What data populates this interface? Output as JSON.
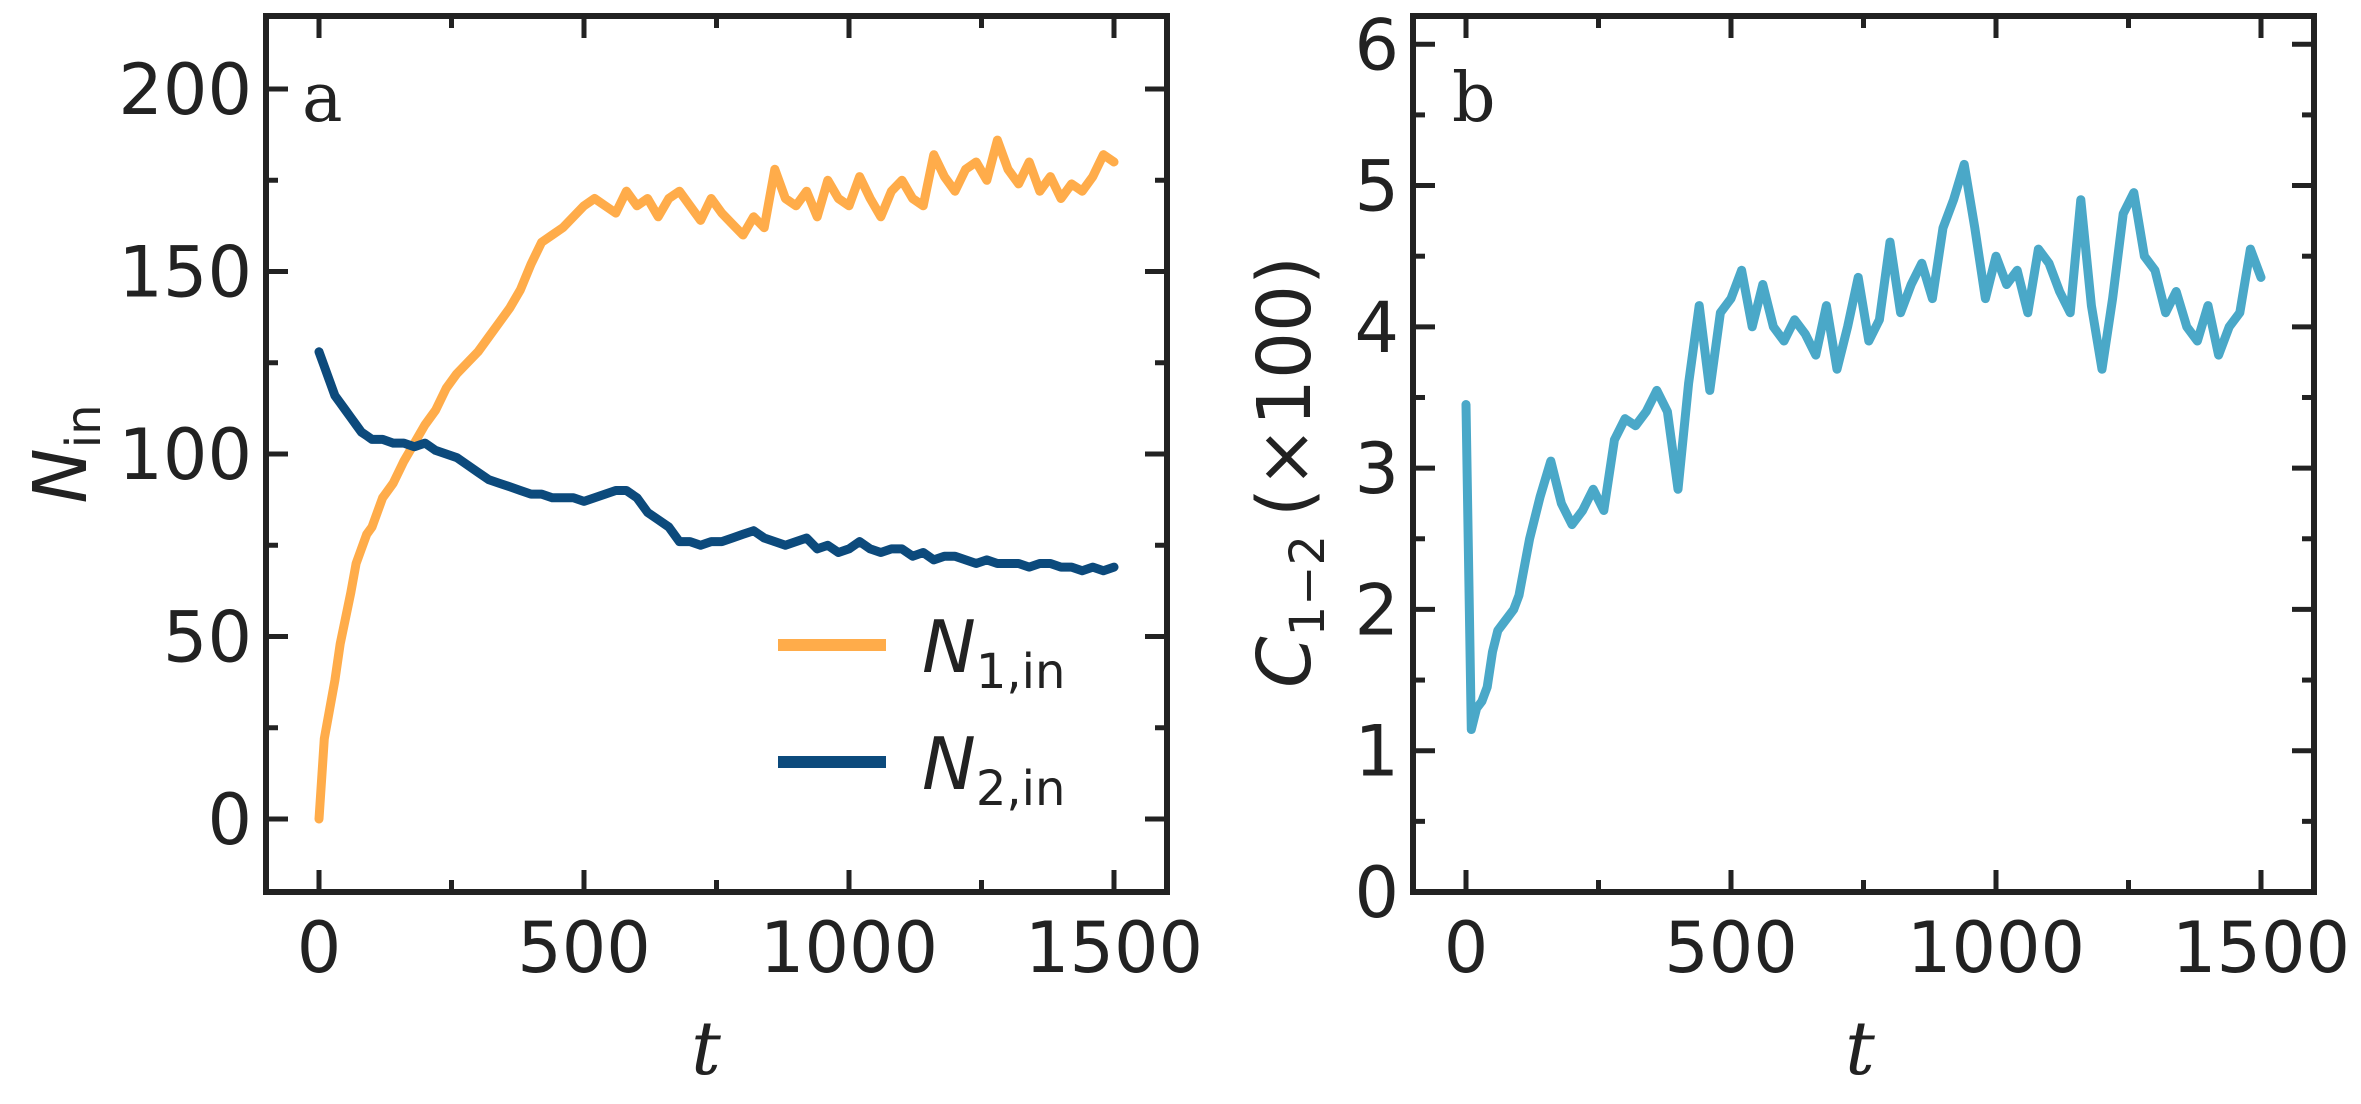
{
  "chart_data": [
    {
      "type": "line",
      "panel_label": "a",
      "xlabel": "t",
      "ylabel": "N",
      "ylabel_sub": "in",
      "xlim": [
        -100,
        1600
      ],
      "ylim": [
        -20,
        220
      ],
      "x_ticks": [
        0,
        500,
        1000,
        1500
      ],
      "y_ticks": [
        0,
        50,
        100,
        150,
        200
      ],
      "legend_position": "lower-right",
      "series": [
        {
          "name": "N",
          "name_sub": "1,in",
          "color": "#FFAC4A",
          "x": [
            0,
            10,
            20,
            30,
            40,
            50,
            60,
            70,
            80,
            90,
            100,
            120,
            140,
            160,
            180,
            200,
            220,
            240,
            260,
            280,
            300,
            320,
            340,
            360,
            380,
            400,
            420,
            440,
            460,
            480,
            500,
            520,
            540,
            560,
            580,
            600,
            620,
            640,
            660,
            680,
            700,
            720,
            740,
            760,
            780,
            800,
            820,
            840,
            860,
            880,
            900,
            920,
            940,
            960,
            980,
            1000,
            1020,
            1040,
            1060,
            1080,
            1100,
            1120,
            1140,
            1160,
            1180,
            1200,
            1220,
            1240,
            1260,
            1280,
            1300,
            1320,
            1340,
            1360,
            1380,
            1400,
            1420,
            1440,
            1460,
            1480,
            1500
          ],
          "values": [
            0,
            22,
            30,
            38,
            48,
            55,
            62,
            70,
            74,
            78,
            80,
            88,
            92,
            98,
            103,
            108,
            112,
            118,
            122,
            125,
            128,
            132,
            136,
            140,
            145,
            152,
            158,
            160,
            162,
            165,
            168,
            170,
            168,
            166,
            172,
            168,
            170,
            165,
            170,
            172,
            168,
            164,
            170,
            166,
            163,
            160,
            165,
            162,
            178,
            170,
            168,
            172,
            165,
            175,
            170,
            168,
            176,
            170,
            165,
            172,
            175,
            170,
            168,
            182,
            176,
            172,
            178,
            180,
            175,
            186,
            178,
            174,
            180,
            172,
            176,
            170,
            174,
            172,
            176,
            182,
            180
          ]
        },
        {
          "name": "N",
          "name_sub": "2,in",
          "color": "#0C4A7C",
          "x": [
            0,
            10,
            20,
            30,
            40,
            50,
            60,
            70,
            80,
            90,
            100,
            120,
            140,
            160,
            180,
            200,
            220,
            240,
            260,
            280,
            300,
            320,
            340,
            360,
            380,
            400,
            420,
            440,
            460,
            480,
            500,
            520,
            540,
            560,
            580,
            600,
            620,
            640,
            660,
            680,
            700,
            720,
            740,
            760,
            780,
            800,
            820,
            840,
            860,
            880,
            900,
            920,
            940,
            960,
            980,
            1000,
            1020,
            1040,
            1060,
            1080,
            1100,
            1120,
            1140,
            1160,
            1180,
            1200,
            1220,
            1240,
            1260,
            1280,
            1300,
            1320,
            1340,
            1360,
            1380,
            1400,
            1420,
            1440,
            1460,
            1480,
            1500
          ],
          "values": [
            128,
            124,
            120,
            116,
            114,
            112,
            110,
            108,
            106,
            105,
            104,
            104,
            103,
            103,
            102,
            103,
            101,
            100,
            99,
            97,
            95,
            93,
            92,
            91,
            90,
            89,
            89,
            88,
            88,
            88,
            87,
            88,
            89,
            90,
            90,
            88,
            84,
            82,
            80,
            76,
            76,
            75,
            76,
            76,
            77,
            78,
            79,
            77,
            76,
            75,
            76,
            77,
            74,
            75,
            73,
            74,
            76,
            74,
            73,
            74,
            74,
            72,
            73,
            71,
            72,
            72,
            71,
            70,
            71,
            70,
            70,
            70,
            69,
            70,
            70,
            69,
            69,
            68,
            69,
            68,
            69
          ]
        }
      ]
    },
    {
      "type": "line",
      "panel_label": "b",
      "xlabel": "t",
      "ylabel": "C",
      "ylabel_sub": "1−2",
      "ylabel_suffix": "(×100)",
      "xlim": [
        -100,
        1600
      ],
      "ylim": [
        0,
        6.2
      ],
      "x_ticks": [
        0,
        500,
        1000,
        1500
      ],
      "y_ticks": [
        0,
        1,
        2,
        3,
        4,
        5,
        6
      ],
      "series": [
        {
          "name": "C_1-2",
          "color": "#4AA8C8",
          "x": [
            0,
            10,
            20,
            30,
            40,
            50,
            60,
            70,
            80,
            90,
            100,
            120,
            140,
            160,
            180,
            200,
            220,
            240,
            260,
            280,
            300,
            320,
            340,
            360,
            380,
            400,
            420,
            440,
            460,
            480,
            500,
            520,
            540,
            560,
            580,
            600,
            620,
            640,
            660,
            680,
            700,
            720,
            740,
            760,
            780,
            800,
            820,
            840,
            860,
            880,
            900,
            920,
            940,
            960,
            980,
            1000,
            1020,
            1040,
            1060,
            1080,
            1100,
            1120,
            1140,
            1160,
            1180,
            1200,
            1220,
            1240,
            1260,
            1280,
            1300,
            1320,
            1340,
            1360,
            1380,
            1400,
            1420,
            1440,
            1460,
            1480,
            1500
          ],
          "values": [
            3.45,
            1.15,
            1.3,
            1.35,
            1.45,
            1.7,
            1.85,
            1.9,
            1.95,
            2.0,
            2.1,
            2.5,
            2.8,
            3.05,
            2.75,
            2.6,
            2.7,
            2.85,
            2.7,
            3.2,
            3.35,
            3.3,
            3.4,
            3.55,
            3.4,
            2.85,
            3.6,
            4.15,
            3.55,
            4.1,
            4.2,
            4.4,
            4.0,
            4.3,
            4.0,
            3.9,
            4.05,
            3.95,
            3.8,
            4.15,
            3.7,
            4.0,
            4.35,
            3.9,
            4.05,
            4.6,
            4.1,
            4.3,
            4.45,
            4.2,
            4.7,
            4.9,
            5.15,
            4.7,
            4.2,
            4.5,
            4.3,
            4.4,
            4.1,
            4.55,
            4.45,
            4.25,
            4.1,
            4.9,
            4.15,
            3.7,
            4.2,
            4.8,
            4.95,
            4.5,
            4.4,
            4.1,
            4.25,
            4.0,
            3.9,
            4.15,
            3.8,
            4.0,
            4.1,
            4.55,
            4.35
          ]
        }
      ]
    }
  ]
}
